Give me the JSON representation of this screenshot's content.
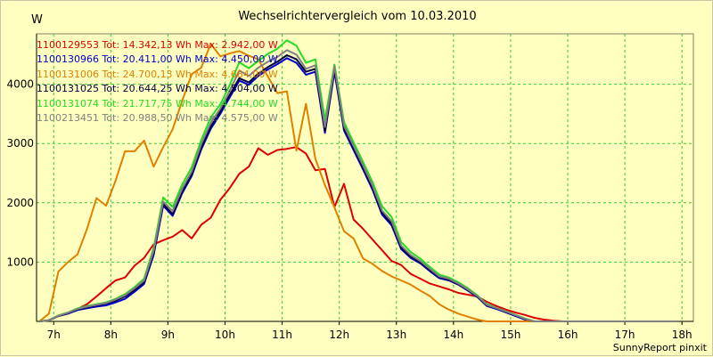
{
  "chart_data": {
    "type": "line",
    "title": "Wechselrichtervergleich vom 10.03.2010",
    "ylabel": "W",
    "footer": "SunnyReport pinxit",
    "xlim": [
      6.7,
      18.2
    ],
    "ylim": [
      0,
      4850
    ],
    "yticks": [
      1000,
      2000,
      3000,
      4000
    ],
    "ytick_labels": [
      "1000",
      "2000",
      "3000",
      "4000"
    ],
    "xticks": [
      7,
      8,
      9,
      10,
      11,
      12,
      13,
      14,
      15,
      16,
      17,
      18
    ],
    "xtick_labels": [
      "7h",
      "8h",
      "9h",
      "10h",
      "11h",
      "12h",
      "13h",
      "14h",
      "15h",
      "16h",
      "17h",
      "18h"
    ],
    "grid": true,
    "legend_position": "top-left",
    "x": [
      6.75,
      6.917,
      7.083,
      7.25,
      7.417,
      7.583,
      7.75,
      7.917,
      8.083,
      8.25,
      8.417,
      8.583,
      8.75,
      8.917,
      9.083,
      9.25,
      9.417,
      9.583,
      9.75,
      9.917,
      10.083,
      10.25,
      10.417,
      10.583,
      10.75,
      10.917,
      11.083,
      11.25,
      11.417,
      11.583,
      11.75,
      11.917,
      12.083,
      12.25,
      12.417,
      12.583,
      12.75,
      12.917,
      13.083,
      13.25,
      13.417,
      13.583,
      13.75,
      13.917,
      14.083,
      14.25,
      14.417,
      14.583,
      14.75,
      14.917,
      15.083,
      15.25,
      15.417,
      15.583,
      15.75,
      15.917,
      16.083,
      16.25,
      16.417,
      16.583,
      16.75,
      16.917,
      17.083,
      17.25,
      17.417,
      17.583,
      17.75,
      17.917
    ],
    "series": [
      {
        "name": "1100129553 Tot: 14.342,13 Wh Max: 2.942,00 W",
        "color": "#dd0000",
        "values": [
          0,
          20,
          90,
          130,
          210,
          290,
          420,
          560,
          690,
          740,
          940,
          1070,
          1300,
          1370,
          1430,
          1540,
          1400,
          1630,
          1750,
          2050,
          2250,
          2490,
          2610,
          2920,
          2810,
          2890,
          2910,
          2940,
          2830,
          2550,
          2570,
          1930,
          2320,
          1720,
          1560,
          1380,
          1200,
          1020,
          950,
          800,
          720,
          640,
          590,
          540,
          480,
          450,
          420,
          330,
          260,
          200,
          150,
          110,
          60,
          30,
          10,
          0,
          0,
          0,
          0,
          0,
          0,
          0,
          0,
          0,
          0,
          0,
          0,
          0
        ]
      },
      {
        "name": "1100130966 Tot: 20.411,00 Wh Max: 4.450,00 W",
        "color": "#0000cc",
        "values": [
          0,
          20,
          90,
          130,
          190,
          220,
          250,
          270,
          320,
          380,
          500,
          630,
          1120,
          1950,
          1780,
          2160,
          2450,
          2900,
          3250,
          3500,
          3780,
          4060,
          3990,
          4140,
          4250,
          4340,
          4440,
          4360,
          4160,
          4210,
          3180,
          4210,
          3220,
          2890,
          2560,
          2220,
          1800,
          1620,
          1220,
          1070,
          980,
          850,
          730,
          690,
          620,
          520,
          410,
          260,
          210,
          150,
          90,
          30,
          0,
          0,
          0,
          0,
          0,
          0,
          0,
          0,
          0,
          0,
          0,
          0,
          0,
          0,
          0,
          0
        ]
      },
      {
        "name": "1100131006 Tot: 24.700,13 Wh Max: 4.684,00 W",
        "color": "#e08000",
        "values": [
          0,
          130,
          840,
          1000,
          1130,
          1560,
          2080,
          1950,
          2370,
          2870,
          2870,
          3050,
          2610,
          2940,
          3240,
          3720,
          4170,
          4280,
          4680,
          4470,
          4520,
          4560,
          4480,
          4420,
          4130,
          3850,
          3880,
          2880,
          3670,
          2740,
          2300,
          1920,
          1520,
          1400,
          1060,
          970,
          850,
          760,
          690,
          620,
          520,
          430,
          290,
          200,
          130,
          80,
          30,
          0,
          0,
          0,
          0,
          0,
          0,
          0,
          0,
          0,
          0,
          0,
          0,
          0,
          0,
          0,
          0,
          0,
          0,
          0,
          0,
          0
        ]
      },
      {
        "name": "1100131025 Tot: 20.644,25 Wh Max: 4.504,00 W",
        "color": "#000040",
        "values": [
          0,
          20,
          90,
          140,
          200,
          240,
          270,
          300,
          350,
          420,
          530,
          660,
          1150,
          1980,
          1810,
          2190,
          2480,
          2940,
          3290,
          3540,
          3820,
          4100,
          4030,
          4180,
          4290,
          4380,
          4490,
          4420,
          4210,
          4260,
          3210,
          4250,
          3260,
          2930,
          2590,
          2250,
          1830,
          1650,
          1250,
          1090,
          1000,
          870,
          750,
          700,
          630,
          530,
          420,
          270,
          220,
          160,
          100,
          40,
          0,
          0,
          0,
          0,
          0,
          0,
          0,
          0,
          0,
          0,
          0,
          0,
          0,
          0,
          0,
          0
        ]
      },
      {
        "name": "1100131074 Tot: 21.717,75 Wh Max: 4.744,00 W",
        "color": "#22dd22",
        "values": [
          0,
          20,
          100,
          150,
          220,
          260,
          290,
          320,
          380,
          460,
          580,
          720,
          1240,
          2090,
          1930,
          2310,
          2600,
          3060,
          3440,
          3660,
          3990,
          4370,
          4270,
          4390,
          4510,
          4600,
          4740,
          4650,
          4360,
          4420,
          3400,
          4330,
          3360,
          3020,
          2690,
          2350,
          1940,
          1760,
          1340,
          1170,
          1060,
          920,
          790,
          740,
          660,
          560,
          440,
          290,
          230,
          170,
          110,
          50,
          0,
          0,
          0,
          0,
          0,
          0,
          0,
          0,
          0,
          0,
          0,
          0,
          0,
          0,
          0,
          0
        ]
      },
      {
        "name": "1100213451 Tot: 20.988,50 Wh Max: 4.575,00 W",
        "color": "#808080",
        "values": [
          0,
          20,
          95,
          145,
          210,
          250,
          280,
          310,
          370,
          440,
          560,
          690,
          1190,
          2020,
          1860,
          2240,
          2530,
          2990,
          3350,
          3590,
          3890,
          4230,
          4140,
          4280,
          4380,
          4460,
          4575,
          4500,
          4260,
          4320,
          3280,
          4300,
          3300,
          2960,
          2630,
          2290,
          1870,
          1690,
          1280,
          1120,
          1020,
          890,
          760,
          720,
          640,
          540,
          430,
          280,
          225,
          165,
          105,
          45,
          0,
          0,
          0,
          0,
          0,
          0,
          0,
          0,
          0,
          0,
          0,
          0,
          0,
          0,
          0,
          0
        ]
      }
    ]
  }
}
